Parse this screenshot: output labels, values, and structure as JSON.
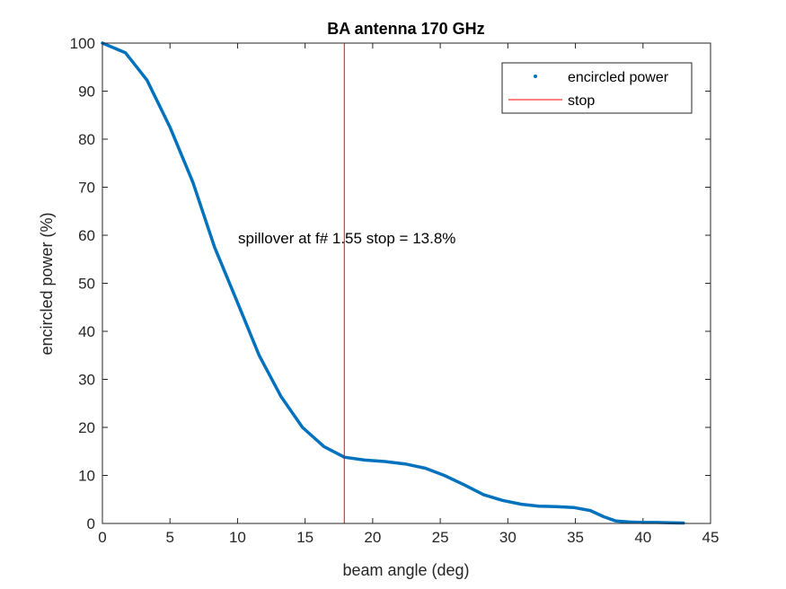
{
  "chart_data": {
    "type": "line",
    "title": "BA antenna 170 GHz",
    "xlabel": "beam angle (deg)",
    "ylabel": "encircled power (%)",
    "xlim": [
      0,
      45
    ],
    "ylim": [
      0,
      100
    ],
    "xticks": [
      0,
      5,
      10,
      15,
      20,
      25,
      30,
      35,
      40,
      45
    ],
    "yticks": [
      0,
      10,
      20,
      30,
      40,
      50,
      60,
      70,
      80,
      90,
      100
    ],
    "grid": false,
    "legend_position": "top-right",
    "series": [
      {
        "name": "encircled power",
        "color": "#0072BD",
        "x": [
          0,
          1.7,
          3.3,
          5.0,
          6.7,
          8.3,
          10.0,
          11.6,
          13.2,
          14.8,
          16.4,
          17.9,
          19.4,
          20.9,
          22.4,
          23.9,
          25.3,
          26.8,
          28.2,
          29.6,
          31.0,
          32.3,
          33.6,
          34.9,
          36.1,
          37.1,
          38.0,
          39.0,
          40.0,
          41.0,
          42.0,
          43.0
        ],
        "y": [
          100,
          98,
          92.3,
          82.5,
          71,
          57.5,
          46,
          35,
          26.5,
          20,
          16,
          13.8,
          13.2,
          12.9,
          12.4,
          11.5,
          10,
          8,
          6,
          4.8,
          4,
          3.6,
          3.5,
          3.3,
          2.7,
          1.4,
          0.5,
          0.3,
          0.2,
          0.2,
          0.15,
          0.1
        ]
      },
      {
        "name": "stop",
        "color": "#FF0000",
        "x_vertical": 17.9
      }
    ],
    "annotation": "spillover at f# 1.55 stop = 13.8%"
  }
}
